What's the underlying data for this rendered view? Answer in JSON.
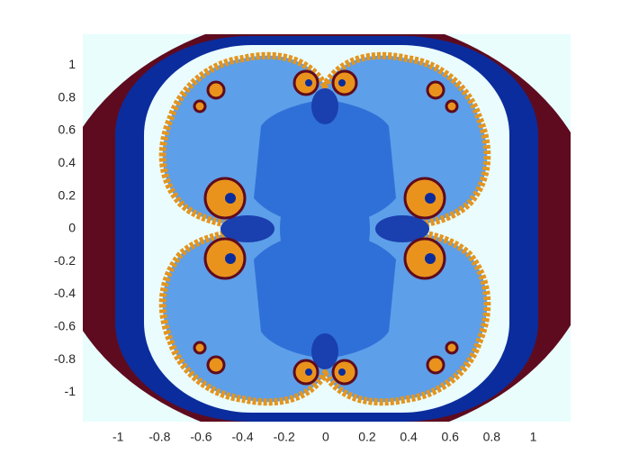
{
  "chart_data": {
    "type": "image",
    "xlim": [
      -1.17,
      1.18
    ],
    "ylim": [
      -1.18,
      1.19
    ],
    "xticks": [
      -1,
      -0.8,
      -0.6,
      -0.4,
      -0.2,
      0,
      0.2,
      0.4,
      0.6,
      0.8,
      1
    ],
    "yticks": [
      -1,
      -0.8,
      -0.6,
      -0.4,
      -0.2,
      0,
      0.2,
      0.4,
      0.6,
      0.8,
      1
    ]
  }
}
